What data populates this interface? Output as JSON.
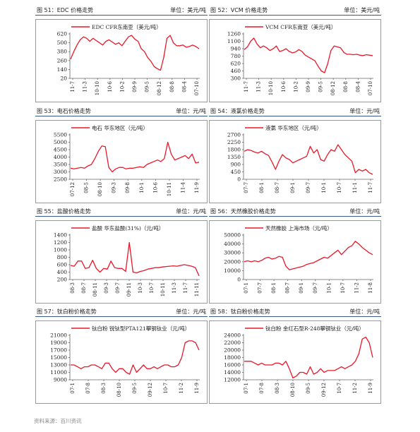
{
  "charts": [
    {
      "header": "图 51：EDC 价格走势",
      "unit": "单位：美元/吨",
      "legend": "EDC CFR东南亚（美元/吨）",
      "yticks": [
        "620",
        "500",
        "380",
        "260",
        "140",
        "20"
      ],
      "xticks": [
        "11-7",
        "11-3",
        "10-10",
        "10-6",
        "10-2",
        "09-9",
        "09-5",
        "08-12",
        "08-8",
        "08-4",
        "07-10"
      ]
    },
    {
      "header": "图 52：VCM 价格走势",
      "unit": "单位：美元/吨",
      "legend": "VCM CFR东南亚（美元/吨）",
      "yticks": [
        "1260",
        "1100",
        "940",
        "780",
        "620",
        "460",
        "300"
      ],
      "xticks": [
        "11-7",
        "11-3",
        "10-10",
        "10-6",
        "10-2",
        "09-9",
        "09-5",
        "08-12",
        "08-8",
        "08-4",
        "07-10"
      ]
    },
    {
      "header": "图 53：电石价格走势",
      "unit": "单位：元/吨",
      "legend": "电石 华东地区（元/吨）",
      "yticks": [
        "5500",
        "5000",
        "4500",
        "4000",
        "3500",
        "3000",
        "2500"
      ],
      "xticks": [
        "07-12",
        "08-5",
        "08-10",
        "09-3",
        "09-8",
        "10-1",
        "10-6",
        "10-11",
        "11-4",
        "11-9"
      ]
    },
    {
      "header": "图 54：液氯价格走势",
      "unit": "单位：元/吨",
      "legend": "液氯 华东地区（元/吨）",
      "yticks": [
        "2700",
        "2250",
        "1800",
        "1350",
        "900",
        "450",
        "0"
      ],
      "xticks": [
        "07-7",
        "08-1",
        "08-7",
        "09-1",
        "09-7",
        "10-1",
        "10-7",
        "11-1",
        "11-7"
      ]
    },
    {
      "header": "图 55：盐酸价格走势",
      "unit": "单位：元/吨",
      "legend": "盐酸 华东盐酸(31%)（元/吨）",
      "yticks": [
        "1400",
        "1200",
        "1000",
        "800",
        "600",
        "400",
        "200"
      ],
      "xticks": [
        "08-3",
        "08-7",
        "08-11",
        "09-3",
        "09-7",
        "09-11",
        "10-3",
        "10-7",
        "10-11",
        "11-3",
        "11-7",
        "11-11"
      ]
    },
    {
      "header": "图 56：天然橡胶价格走势",
      "unit": "单位：元/吨",
      "legend": "天然橡胶 上海市场（元/吨）",
      "yticks": [
        "50000",
        "40000",
        "30000",
        "20000",
        "10000",
        "0"
      ],
      "xticks": [
        "07-1",
        "07-7",
        "08-1",
        "08-7",
        "09-1",
        "09-7",
        "10-1",
        "10-7",
        "11-2",
        "11-8"
      ]
    },
    {
      "header": "图 57：钛白粉价格走势",
      "unit": "单位：元/吨",
      "legend": "钛白粉 锐钛型PTA121攀钢钛业（元/吨）",
      "yticks": [
        "21000",
        "19000",
        "17000",
        "15000",
        "13000",
        "11000",
        "9000"
      ],
      "xticks": [
        "07-1",
        "07-8",
        "08-3",
        "08-10",
        "09-5",
        "09-12",
        "10-7",
        "11-2",
        "11-9"
      ]
    },
    {
      "header": "图 58：钛白粉价格走势",
      "unit": "单位：元/吨",
      "legend": "钛白粉 金红石型R-248攀钢钛业（元/吨）",
      "yticks": [
        "24000",
        "22000",
        "20000",
        "18000",
        "16000",
        "14000",
        "12000"
      ],
      "xticks": [
        "07-1",
        "07-8",
        "08-3",
        "08-10",
        "09-5",
        "09-12",
        "10-7",
        "11-2",
        "11-9"
      ]
    }
  ],
  "chart_data": [
    {
      "type": "line",
      "title": "EDC CFR东南亚（美元/吨）",
      "ylim": [
        20,
        620
      ],
      "grid": false,
      "legend": "top-center",
      "series": [
        {
          "name": "EDC CFR东南亚（美元/吨）",
          "values": [
            280,
            380,
            470,
            540,
            580,
            560,
            520,
            560,
            530,
            500,
            470,
            520,
            540,
            510,
            480,
            500,
            460,
            520,
            580,
            600,
            550,
            520,
            420,
            380,
            300,
            250,
            180,
            150,
            130,
            300,
            560,
            600,
            500,
            460,
            460,
            470,
            440,
            450,
            470,
            450,
            420
          ]
        }
      ]
    },
    {
      "type": "line",
      "title": "VCM CFR东南亚（美元/吨）",
      "ylim": [
        300,
        1260
      ],
      "grid": false,
      "legend": "top-center",
      "series": [
        {
          "name": "VCM CFR东南亚（美元/吨）",
          "values": [
            920,
            980,
            1100,
            1170,
            1040,
            960,
            1000,
            960,
            900,
            940,
            1000,
            880,
            900,
            940,
            880,
            850,
            870,
            920,
            880,
            800,
            760,
            720,
            680,
            560,
            460,
            420,
            620,
            900,
            1000,
            980,
            960,
            860,
            820,
            820,
            810,
            820,
            800,
            790,
            810,
            800,
            790
          ]
        }
      ]
    },
    {
      "type": "line",
      "title": "电石 华东地区（元/吨）",
      "ylim": [
        2500,
        5500
      ],
      "grid": false,
      "legend": "top-center",
      "series": [
        {
          "name": "电石 华东地区（元/吨）",
          "values": [
            3250,
            3200,
            3250,
            3300,
            3250,
            3400,
            3500,
            3900,
            4400,
            4750,
            4700,
            3300,
            3000,
            3200,
            3300,
            3300,
            3200,
            3250,
            3250,
            3300,
            3350,
            3300,
            3500,
            3600,
            3700,
            3800,
            3700,
            3900,
            5000,
            4200,
            3800,
            3900,
            4000,
            4100,
            3900,
            4200,
            3600,
            3650
          ]
        }
      ]
    },
    {
      "type": "line",
      "title": "液氯 华东地区（元/吨）",
      "ylim": [
        0,
        2700
      ],
      "grid": false,
      "legend": "top-center",
      "series": [
        {
          "name": "液氯 华东地区（元/吨）",
          "values": [
            1700,
            1800,
            1750,
            1650,
            1600,
            1700,
            1550,
            1450,
            1050,
            600,
            1100,
            1500,
            1300,
            1200,
            1000,
            1100,
            1200,
            1300,
            1400,
            2000,
            1600,
            1800,
            1200,
            1100,
            1500,
            1800,
            1700,
            2100,
            1800,
            1500,
            1300,
            1100,
            400,
            600,
            500,
            600,
            400,
            300
          ]
        }
      ]
    },
    {
      "type": "line",
      "title": "盐酸 华东盐酸(31%)（元/吨）",
      "ylim": [
        200,
        1400
      ],
      "grid": false,
      "legend": "top-center",
      "series": [
        {
          "name": "盐酸 华东盐酸(31%)（元/吨）",
          "values": [
            580,
            560,
            700,
            700,
            500,
            520,
            720,
            500,
            400,
            500,
            480,
            700,
            520,
            500,
            500,
            420,
            1200,
            400,
            380,
            420,
            440,
            480,
            500,
            520,
            520,
            540,
            550,
            560,
            570,
            560,
            580,
            600,
            580,
            560,
            520,
            300
          ]
        }
      ]
    },
    {
      "type": "line",
      "title": "天然橡胶 上海市场（元/吨）",
      "ylim": [
        0,
        50000
      ],
      "grid": false,
      "legend": "top-center",
      "series": [
        {
          "name": "天然橡胶 上海市场（元/吨）",
          "values": [
            20000,
            21000,
            20000,
            21000,
            20000,
            21500,
            24000,
            25000,
            23000,
            24000,
            26000,
            25000,
            15000,
            11000,
            12000,
            13000,
            14000,
            15000,
            17000,
            18000,
            19000,
            21000,
            23000,
            25000,
            24000,
            27000,
            30000,
            33000,
            28000,
            32000,
            36000,
            38000,
            43000,
            40000,
            36000,
            33000,
            30000,
            28000
          ]
        }
      ]
    },
    {
      "type": "line",
      "title": "钛白粉 锐钛型PTA121攀钢钛业（元/吨）",
      "ylim": [
        9000,
        21000
      ],
      "grid": false,
      "legend": "top-center",
      "series": [
        {
          "name": "钛白粉 锐钛型PTA121攀钢钛业（元/吨）",
          "values": [
            13000,
            13000,
            12500,
            12000,
            12500,
            12500,
            13000,
            13000,
            12500,
            12000,
            13500,
            13500,
            12000,
            11000,
            12000,
            12000,
            11000,
            10500,
            13000,
            11000,
            12000,
            13000,
            12000,
            12000,
            12500,
            12000,
            12500,
            13000,
            13000,
            12500,
            12500,
            13000,
            15000,
            19000,
            19500,
            19500,
            19000,
            17000
          ]
        }
      ]
    },
    {
      "type": "line",
      "title": "钛白粉 金红石型R-248攀钢钛业（元/吨）",
      "ylim": [
        12000,
        24000
      ],
      "grid": false,
      "legend": "top-center",
      "series": [
        {
          "name": "钛白粉 金红石型R-248攀钢钛业（元/吨）",
          "values": [
            17000,
            17000,
            17000,
            16500,
            16000,
            16500,
            16000,
            16000,
            16000,
            16500,
            16500,
            16000,
            17000,
            15000,
            12500,
            13000,
            14000,
            14000,
            13500,
            15500,
            13500,
            14000,
            15000,
            14000,
            14500,
            14500,
            14500,
            15000,
            15500,
            15000,
            15500,
            16000,
            17000,
            19000,
            23000,
            23500,
            22000,
            18000
          ]
        }
      ]
    }
  ],
  "source": "资料来源：百川资讯"
}
